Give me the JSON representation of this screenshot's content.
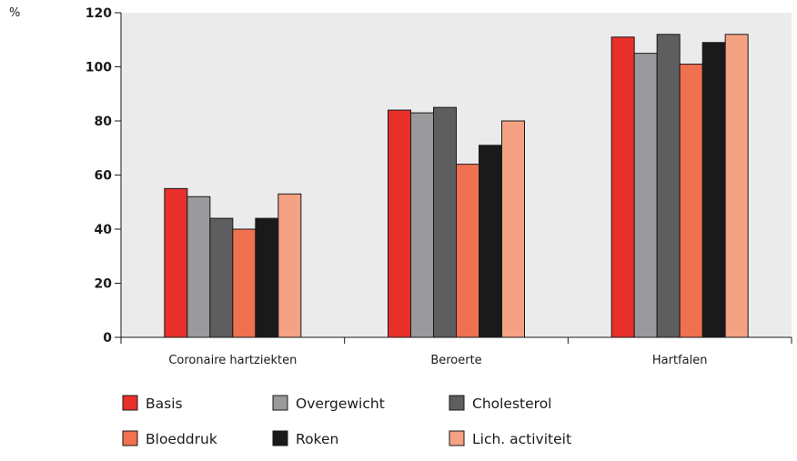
{
  "chart_data": {
    "type": "bar",
    "title": "",
    "xlabel": "",
    "ylabel": "%",
    "ylim": [
      0,
      120
    ],
    "yticks": [
      0,
      20,
      40,
      60,
      80,
      100,
      120
    ],
    "categories": [
      "Coronaire hartziekten",
      "Beroerte",
      "Hartfalen"
    ],
    "series": [
      {
        "name": "Basis",
        "color": "#e8302a",
        "values": [
          55,
          84,
          111
        ]
      },
      {
        "name": "Overgewicht",
        "color": "#9a9a9c",
        "values": [
          52,
          83,
          105
        ]
      },
      {
        "name": "Cholesterol",
        "color": "#5e5e60",
        "values": [
          44,
          85,
          112
        ]
      },
      {
        "name": "Bloeddruk",
        "color": "#f07150",
        "values": [
          40,
          64,
          101
        ]
      },
      {
        "name": "Roken",
        "color": "#1a1a1a",
        "values": [
          44,
          71,
          109
        ]
      },
      {
        "name": "Lich. activiteit",
        "color": "#f4a184",
        "values": [
          53,
          80,
          112
        ]
      }
    ],
    "plot_background": "#ebebeb",
    "grid": false,
    "legend_position": "bottom"
  }
}
